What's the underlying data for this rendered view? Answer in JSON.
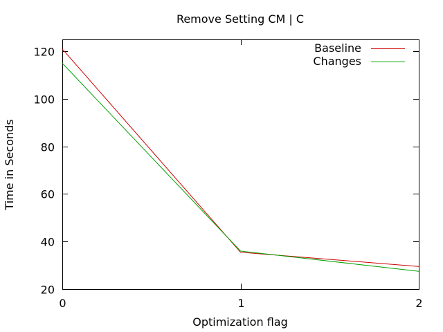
{
  "chart_data": {
    "type": "line",
    "title": "Remove Setting CM | C",
    "xlabel": "Optimization flag",
    "ylabel": "Time in Seconds",
    "x": [
      0,
      1,
      2
    ],
    "xlim": [
      0,
      2
    ],
    "ylim": [
      20,
      125
    ],
    "xticks": [
      0,
      1,
      2
    ],
    "yticks": [
      20,
      40,
      60,
      80,
      100,
      120
    ],
    "grid": false,
    "legend_position": "top-right",
    "series": [
      {
        "name": "Baseline",
        "color": "#cc0000",
        "values": [
          121,
          35.5,
          29.5
        ]
      },
      {
        "name": "Changes",
        "color": "#00a000",
        "values": [
          115,
          36,
          27.5
        ]
      }
    ]
  }
}
